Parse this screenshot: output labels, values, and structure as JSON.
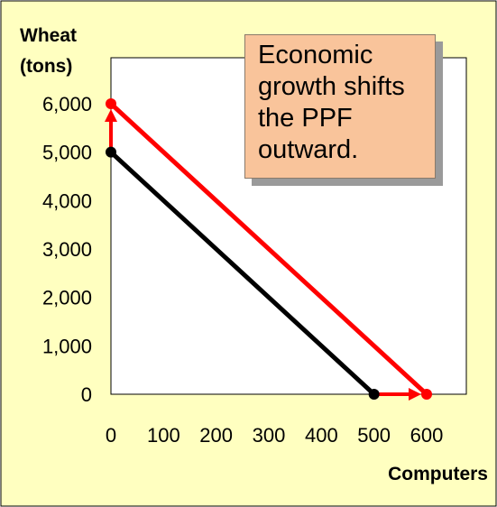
{
  "chart_data": {
    "type": "line",
    "title": "",
    "ylabel_lines": [
      "Wheat",
      "(tons)"
    ],
    "xlabel": "Computers",
    "xlim": [
      0,
      680
    ],
    "ylim": [
      0,
      6300
    ],
    "x_ticks": [
      0,
      100,
      200,
      300,
      400,
      500,
      600
    ],
    "x_tick_labels": [
      "0",
      "100",
      "200",
      "300",
      "400",
      "500",
      "600"
    ],
    "y_ticks": [
      0,
      1000,
      2000,
      3000,
      4000,
      5000,
      6000
    ],
    "y_tick_labels": [
      "0",
      "1,000",
      "2,000",
      "3,000",
      "4,000",
      "5,000",
      "6,000"
    ],
    "grid": false,
    "series": [
      {
        "color": "#000000",
        "points": [
          {
            "x": 0,
            "y": 5000
          },
          {
            "x": 500,
            "y": 0
          }
        ]
      },
      {
        "color": "#ff0000",
        "points": [
          {
            "x": 0,
            "y": 6000
          },
          {
            "x": 600,
            "y": 0
          }
        ]
      }
    ],
    "arrows": [
      {
        "color": "#ff0000",
        "from": {
          "x": 0,
          "y": 5000
        },
        "to": {
          "x": 0,
          "y": 6000
        }
      },
      {
        "color": "#ff0000",
        "from": {
          "x": 500,
          "y": 0
        },
        "to": {
          "x": 600,
          "y": 0
        }
      }
    ],
    "annotation": "Economic\ngrowth shifts\nthe PPF\noutward."
  },
  "colors": {
    "background": "#ffffc0",
    "plot_area": "#ffffff",
    "annotation_fill": "#f9c49b",
    "old_ppf": "#000000",
    "new_ppf": "#ff0000"
  }
}
